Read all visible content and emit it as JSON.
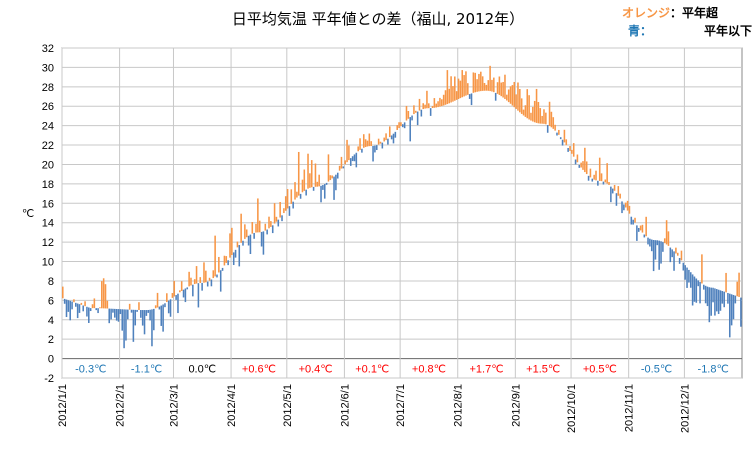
{
  "chart_data": {
    "type": "bar",
    "title": "日平均気温 平年値との差（福山, 2012年）",
    "ylabel": "℃",
    "xlabel": "",
    "ylim": [
      -2,
      32
    ],
    "y_ticks": [
      -2,
      0,
      2,
      4,
      6,
      8,
      10,
      12,
      14,
      16,
      18,
      20,
      22,
      24,
      26,
      28,
      30,
      32
    ],
    "grid": true,
    "legend": {
      "position": "top-right",
      "items": [
        {
          "label": "オレンジ：平年超",
          "color": "#F79646",
          "prefix": "オレンジ",
          "text": "：平年超"
        },
        {
          "label": "青：　　平年以下",
          "color": "#4F81BD",
          "prefix": "青：",
          "text": "平年以下"
        }
      ]
    },
    "x_start": "2012/1/1",
    "x_end": "2012/12/31",
    "x_tick_labels": [
      "2012/1/1",
      "2012/2/1",
      "2012/3/1",
      "2012/4/1",
      "2012/5/1",
      "2012/6/1",
      "2012/7/1",
      "2012/8/1",
      "2012/9/1",
      "2012/10/1",
      "2012/11/1",
      "2012/12/1"
    ],
    "x_tick_days": [
      0,
      31,
      60,
      91,
      121,
      152,
      182,
      213,
      244,
      274,
      305,
      335
    ],
    "colors": {
      "above": "#F79646",
      "below": "#4F81BD",
      "zero": "#000000",
      "pos_text": "#FF0000",
      "neg_text": "#1F77B4",
      "grid": "#C8C8C8"
    },
    "monthly_anomalies": [
      {
        "month": "2012/1",
        "label": "-0.3℃",
        "value": -0.3
      },
      {
        "month": "2012/2",
        "label": "-1.1℃",
        "value": -1.1
      },
      {
        "month": "2012/3",
        "label": "0.0℃",
        "value": 0.0
      },
      {
        "month": "2012/4",
        "label": "+0.6℃",
        "value": 0.6
      },
      {
        "month": "2012/5",
        "label": "+0.4℃",
        "value": 0.4
      },
      {
        "month": "2012/6",
        "label": "+0.1℃",
        "value": 0.1
      },
      {
        "month": "2012/7",
        "label": "+0.8℃",
        "value": 0.8
      },
      {
        "month": "2012/8",
        "label": "+1.7℃",
        "value": 1.7
      },
      {
        "month": "2012/9",
        "label": "+1.5℃",
        "value": 1.5
      },
      {
        "month": "2012/10",
        "label": "+0.5℃",
        "value": 0.5
      },
      {
        "month": "2012/11",
        "label": "-0.5℃",
        "value": -0.5
      },
      {
        "month": "2012/12",
        "label": "-1.8℃",
        "value": -1.8
      }
    ],
    "normal_monthly_mid": [
      5.2,
      5.0,
      7.8,
      13.0,
      17.7,
      21.9,
      25.8,
      27.6,
      24.2,
      18.3,
      12.2,
      7.3
    ],
    "daily_anomalies": [
      [
        1.2,
        -0.5,
        -1.8,
        -1.2,
        -2.0,
        -0.8,
        0.3,
        -0.4,
        -1.5,
        -0.9,
        0.2,
        -0.6,
        0.5,
        -1.0,
        -1.6,
        -0.3,
        0.4,
        1.0,
        -0.2,
        -0.5,
        0.1,
        2.8,
        3.1,
        2.5,
        0.8,
        -1.5,
        -1.1,
        -0.4,
        -0.9,
        -1.2,
        -1.3
      ],
      [
        -0.5,
        -2.2,
        -4.0,
        -3.2,
        -1.0,
        0.6,
        -0.3,
        -3.3,
        -1.6,
        -0.2,
        0.8,
        -0.8,
        -1.6,
        -2.5,
        -0.6,
        -0.3,
        -1.1,
        -3.8,
        -2.2,
        0.3,
        1.5,
        -0.3,
        -2.1,
        -2.8,
        -0.4,
        0.9,
        -1.3,
        -1.8,
        0.5
      ],
      [
        1.6,
        -0.5,
        -2.0,
        0.2,
        1.0,
        -0.8,
        -1.4,
        -0.2,
        1.5,
        0.8,
        -1.2,
        0.5,
        1.8,
        -2.5,
        0.6,
        -0.8,
        2.1,
        1.2,
        -0.5,
        0.3,
        -0.7,
        0.8,
        4.2,
        -0.3,
        1.6,
        -2.2,
        -0.3,
        1.0,
        0.7,
        -0.5,
        2.5
      ],
      [
        2.8,
        -1.3,
        -0.8,
        0.6,
        -2.2,
        3.0,
        -0.5,
        1.5,
        0.8,
        -1.0,
        -2.0,
        1.2,
        -0.6,
        0.9,
        3.5,
        1.2,
        -1.5,
        -2.4,
        0.7,
        -0.5,
        1.2,
        0.6,
        -0.8,
        2.1,
        0.5,
        -0.7,
        1.6,
        -0.6,
        0.5,
        1.5
      ],
      [
        2.0,
        -1.0,
        1.5,
        -0.7,
        1.8,
        0.6,
        4.5,
        -0.5,
        1.3,
        2.2,
        -0.6,
        3.6,
        1.5,
        2.8,
        -0.4,
        2.4,
        0.5,
        1.2,
        -1.7,
        -0.5,
        -1.5,
        -0.2,
        2.8,
        0.5,
        0.3,
        -2.4,
        -1.6,
        -0.6,
        0.5,
        1.2,
        -0.2
      ],
      [
        0.4,
        2.3,
        1.5,
        -0.8,
        -0.5,
        -0.7,
        -1.5,
        0.5,
        1.2,
        -0.4,
        1.4,
        0.8,
        0.6,
        1.3,
        0.5,
        -1.6,
        -0.7,
        -0.5,
        0.6,
        0.2,
        -0.6,
        0.4,
        0.7,
        -0.6,
        1.1,
        -0.4,
        -1.0,
        -0.6,
        0.5,
        0.6
      ],
      [
        0.4,
        -0.3,
        -0.6,
        1.5,
        0.8,
        -2.5,
        -0.5,
        0.9,
        0.2,
        -1.4,
        1.2,
        -0.7,
        0.6,
        0.4,
        1.8,
        0.5,
        -0.8,
        0.2,
        1.0,
        0.4,
        0.6,
        0.9,
        0.7,
        1.1,
        1.5,
        3.5,
        1.5,
        2.7,
        1.6,
        2.5,
        0.9
      ],
      [
        2.1,
        1.8,
        2.8,
        2.2,
        2.5,
        1.2,
        -0.5,
        -1.2,
        2.1,
        2.0,
        1.3,
        1.8,
        2.0,
        1.5,
        0.8,
        0.6,
        1.1,
        2.6,
        1.2,
        1.5,
        -0.8,
        1.2,
        1.9,
        1.4,
        1.6,
        2.5,
        0.6,
        1.3,
        1.8,
        2.1,
        2.6
      ],
      [
        1.5,
        2.9,
        2.4,
        1.6,
        0.6,
        1.2,
        3.0,
        2.5,
        0.8,
        1.5,
        2.2,
        3.5,
        2.2,
        1.6,
        0.8,
        1.5,
        1.2,
        -0.8,
        2.5,
        1.6,
        1.2,
        0.6,
        -0.3,
        0.5,
        -0.2,
        -0.6,
        1.3,
        0.6,
        -0.4,
        0.5
      ],
      [
        0.4,
        1.4,
        -0.5,
        0.8,
        -0.3,
        0.5,
        0.9,
        2.5,
        1.3,
        -0.5,
        0.9,
        -0.3,
        0.5,
        1.0,
        -0.5,
        2.4,
        0.8,
        -0.3,
        0.3,
        2.1,
        0.3,
        -1.6,
        -0.5,
        0.6,
        -1.3,
        1.0,
        0.5,
        -1.2,
        -0.6,
        0.5,
        1.0
      ],
      [
        0.8,
        -0.8,
        -0.5,
        0.5,
        -1.6,
        -0.4,
        0.5,
        0.8,
        -0.3,
        2.0,
        -0.7,
        -0.8,
        -1.2,
        -3.2,
        -2.0,
        -0.5,
        -3.0,
        -2.3,
        -1.0,
        0.5,
        2.5,
        1.5,
        -1.5,
        -0.8,
        -2.0,
        0.6,
        0.3,
        -0.6,
        1.0,
        -0.8
      ],
      [
        -1.5,
        -2.1,
        -1.3,
        -1.6,
        -3.2,
        -2.6,
        -2.5,
        -0.6,
        -2.2,
        3.0,
        -0.5,
        -1.8,
        -2.0,
        -3.6,
        -2.9,
        -1.5,
        -2.8,
        -2.3,
        -2.5,
        -2.1,
        -1.3,
        -1.6,
        2.0,
        -1.1,
        -4.5,
        -3.2,
        -2.5,
        -0.8,
        1.5,
        2.5,
        -3.0
      ]
    ]
  }
}
